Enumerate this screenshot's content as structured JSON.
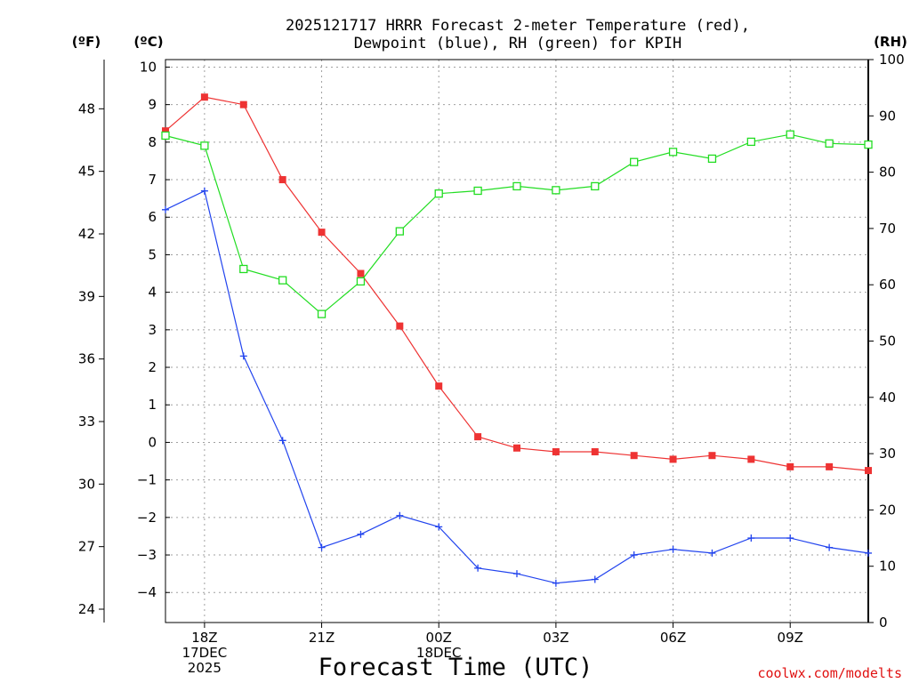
{
  "chart_data": {
    "type": "line",
    "title": [
      "2025121717 HRRR Forecast 2-meter Temperature (red),",
      "Dewpoint (blue), RH (green) for KPIH"
    ],
    "xlabel": "Forecast Time (UTC)",
    "x_start_hour": 17,
    "x_hours": [
      17,
      18,
      19,
      20,
      21,
      22,
      23,
      24,
      25,
      26,
      27,
      28,
      29,
      30,
      31,
      32,
      33,
      34,
      35
    ],
    "x_ticks": [
      {
        "hour": 18,
        "lines": [
          "18Z",
          "17DEC",
          "2025"
        ]
      },
      {
        "hour": 21,
        "lines": [
          "21Z"
        ]
      },
      {
        "hour": 24,
        "lines": [
          "00Z",
          "18DEC"
        ]
      },
      {
        "hour": 27,
        "lines": [
          "03Z"
        ]
      },
      {
        "hour": 30,
        "lines": [
          "06Z"
        ]
      },
      {
        "hour": 33,
        "lines": [
          "09Z"
        ]
      }
    ],
    "celsius_axis": {
      "label": "(ºC)",
      "ylim": [
        -4.8,
        10.2
      ],
      "ticks": [
        10,
        9,
        8,
        7,
        6,
        5,
        4,
        3,
        2,
        1,
        0,
        -1,
        -2,
        -3,
        -4
      ]
    },
    "fahrenheit_axis": {
      "label": "(ºF)",
      "ticks": [
        48,
        45,
        42,
        39,
        36,
        33,
        30,
        27,
        24
      ]
    },
    "rh_axis": {
      "label": "(RH)",
      "ylim": [
        0,
        100
      ],
      "ticks": [
        100,
        90,
        80,
        70,
        60,
        50,
        40,
        30,
        20,
        10,
        0
      ]
    },
    "series": [
      {
        "name": "Temperature",
        "units": "C",
        "color": "#ee3333",
        "marker": "filled-square",
        "values": [
          8.3,
          9.2,
          9.0,
          7.0,
          5.6,
          4.5,
          3.1,
          1.5,
          0.15,
          -0.15,
          -0.25,
          -0.25,
          -0.35,
          -0.45,
          -0.35,
          -0.45,
          -0.65,
          -0.65,
          -0.75
        ]
      },
      {
        "name": "Dewpoint",
        "units": "C",
        "color": "#2244ee",
        "marker": "plus",
        "values": [
          6.2,
          6.7,
          2.3,
          0.05,
          -2.8,
          -2.45,
          -1.95,
          -2.25,
          -3.35,
          -3.5,
          -3.75,
          -3.65,
          -3.0,
          -2.85,
          -2.95,
          -2.55,
          -2.55,
          -2.8,
          -2.95
        ]
      },
      {
        "name": "RH",
        "units": "%",
        "color": "#22dd22",
        "marker": "open-square",
        "values": [
          86.5,
          84.7,
          62.8,
          60.8,
          54.8,
          60.6,
          69.5,
          76.2,
          76.7,
          77.5,
          76.8,
          77.5,
          81.8,
          83.6,
          82.4,
          85.4,
          86.7,
          85.1,
          84.9
        ]
      }
    ],
    "credit": "coolwx.com/modelts"
  }
}
